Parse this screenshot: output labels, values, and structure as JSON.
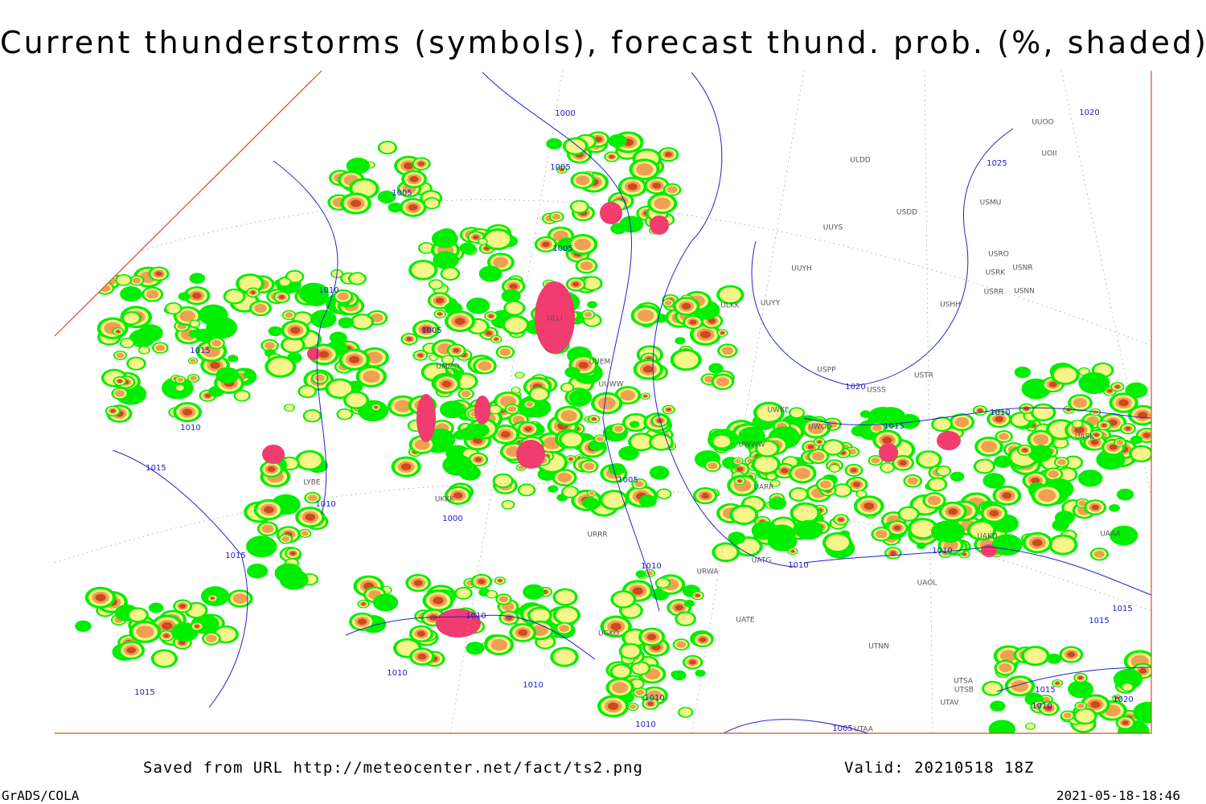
{
  "header": {
    "title": "Current thunderstorms (symbols), forecast thund. prob. (%, shaded)"
  },
  "footer": {
    "source": "Saved from URL http://meteocenter.net/fact/ts2.png",
    "valid": "Valid: 20210518 18Z",
    "software": "GrADS/COLA",
    "timestamp": "2021-05-18-18:46"
  },
  "map": {
    "isobar_labels": [
      "1000",
      "1005",
      "1005",
      "1005",
      "1010",
      "1005",
      "1015",
      "1010",
      "1015",
      "1010",
      "1000",
      "1005",
      "1015",
      "1010",
      "1020",
      "1025",
      "1020",
      "1010",
      "1010",
      "1010",
      "1015",
      "1010",
      "1010",
      "1010",
      "1015",
      "1010",
      "1010",
      "1005",
      "1015",
      "1015",
      "1015",
      "1010",
      "1020"
    ],
    "station_codes": [
      "ULDD",
      "USDD",
      "USMU",
      "UUYS",
      "UUYH",
      "USRO",
      "USRK",
      "USNR",
      "USRR",
      "USNN",
      "ULKK",
      "UUYY",
      "USHH",
      "UUOO",
      "UOII",
      "USPP",
      "USTR",
      "USSS",
      "UWKE",
      "UWOO",
      "UWWW",
      "UARR",
      "UATG",
      "URWA",
      "UATE",
      "UTNN",
      "UAOL",
      "UTSA",
      "UTSB",
      "UTAV",
      "UTAA",
      "ULLI",
      "UMMO",
      "UUEM",
      "UUWW",
      "UKKK",
      "LYBE",
      "UAKD",
      "UASK",
      "UAAA",
      "UGKO",
      "URRR"
    ]
  }
}
